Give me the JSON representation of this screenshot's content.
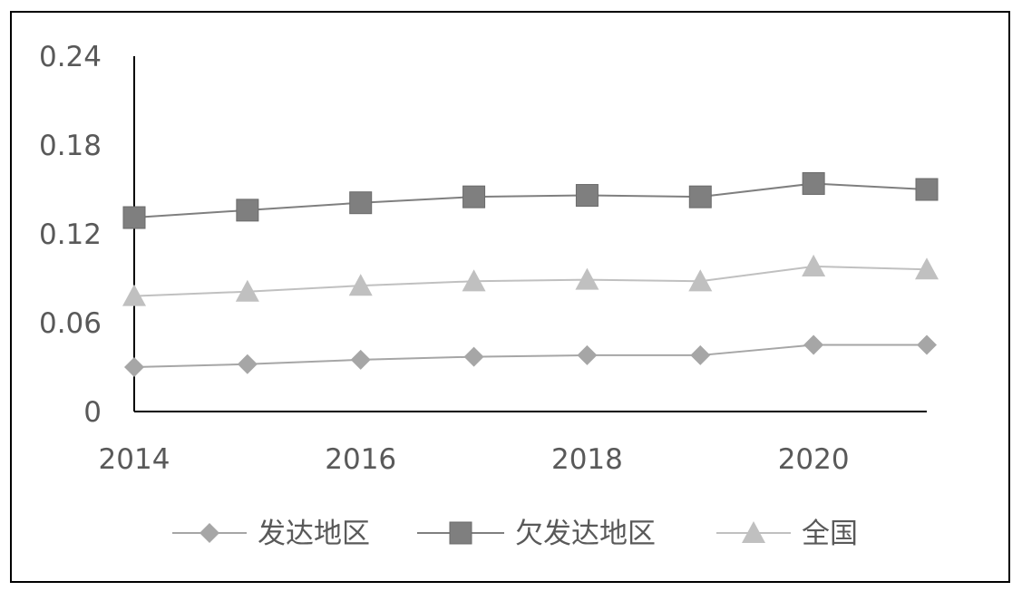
{
  "chart_data": {
    "type": "line",
    "x": [
      2014,
      2015,
      2016,
      2017,
      2018,
      2019,
      2020,
      2021
    ],
    "x_tick_labels": [
      "2014",
      "2016",
      "2018",
      "2020"
    ],
    "y_tick_labels": [
      "0",
      "0.06",
      "0.12",
      "0.18",
      "0.24"
    ],
    "ylim": [
      0,
      0.24
    ],
    "grid": false,
    "legend_position": "bottom",
    "series": [
      {
        "name": "发达地区",
        "marker": "diamond",
        "color": "#a6a6a6",
        "values": [
          0.03,
          0.032,
          0.035,
          0.037,
          0.038,
          0.038,
          0.045,
          0.045
        ]
      },
      {
        "name": "欠发达地区",
        "marker": "square",
        "color": "#7f7f7f",
        "values": [
          0.131,
          0.136,
          0.141,
          0.145,
          0.146,
          0.145,
          0.154,
          0.15
        ]
      },
      {
        "name": "全国",
        "marker": "triangle",
        "color": "#c0c0c0",
        "values": [
          0.078,
          0.081,
          0.085,
          0.088,
          0.089,
          0.088,
          0.098,
          0.096
        ]
      }
    ]
  }
}
